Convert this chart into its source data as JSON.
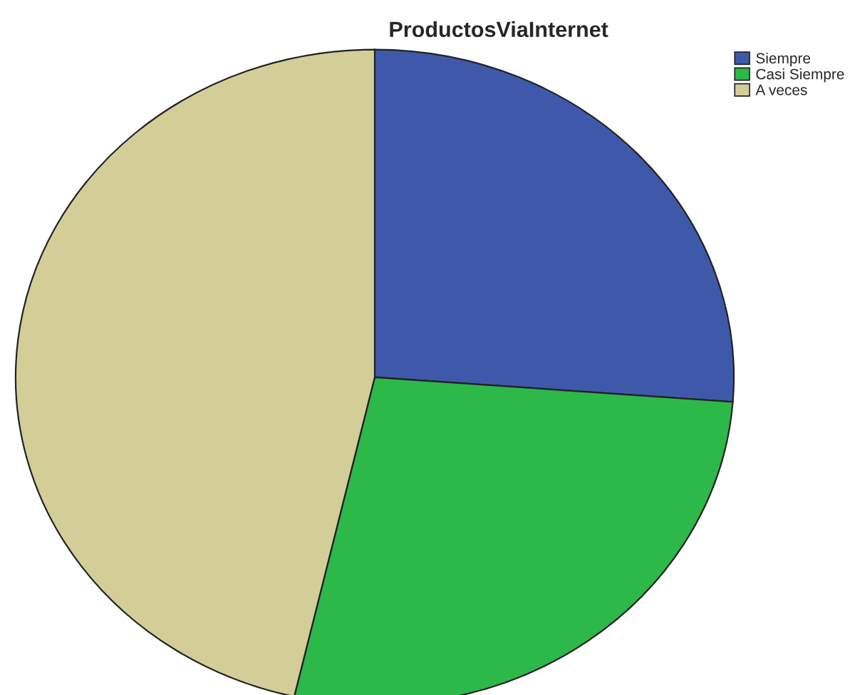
{
  "chart_data": {
    "type": "pie",
    "title": "ProductosViaInternet",
    "categories": [
      "Siempre",
      "Casi Siempre",
      "A veces"
    ],
    "values": [
      26.2,
      27.4,
      46.4
    ],
    "colors": [
      "#3f59aa",
      "#2db84a",
      "#d3ce98"
    ],
    "legend": "top right"
  }
}
